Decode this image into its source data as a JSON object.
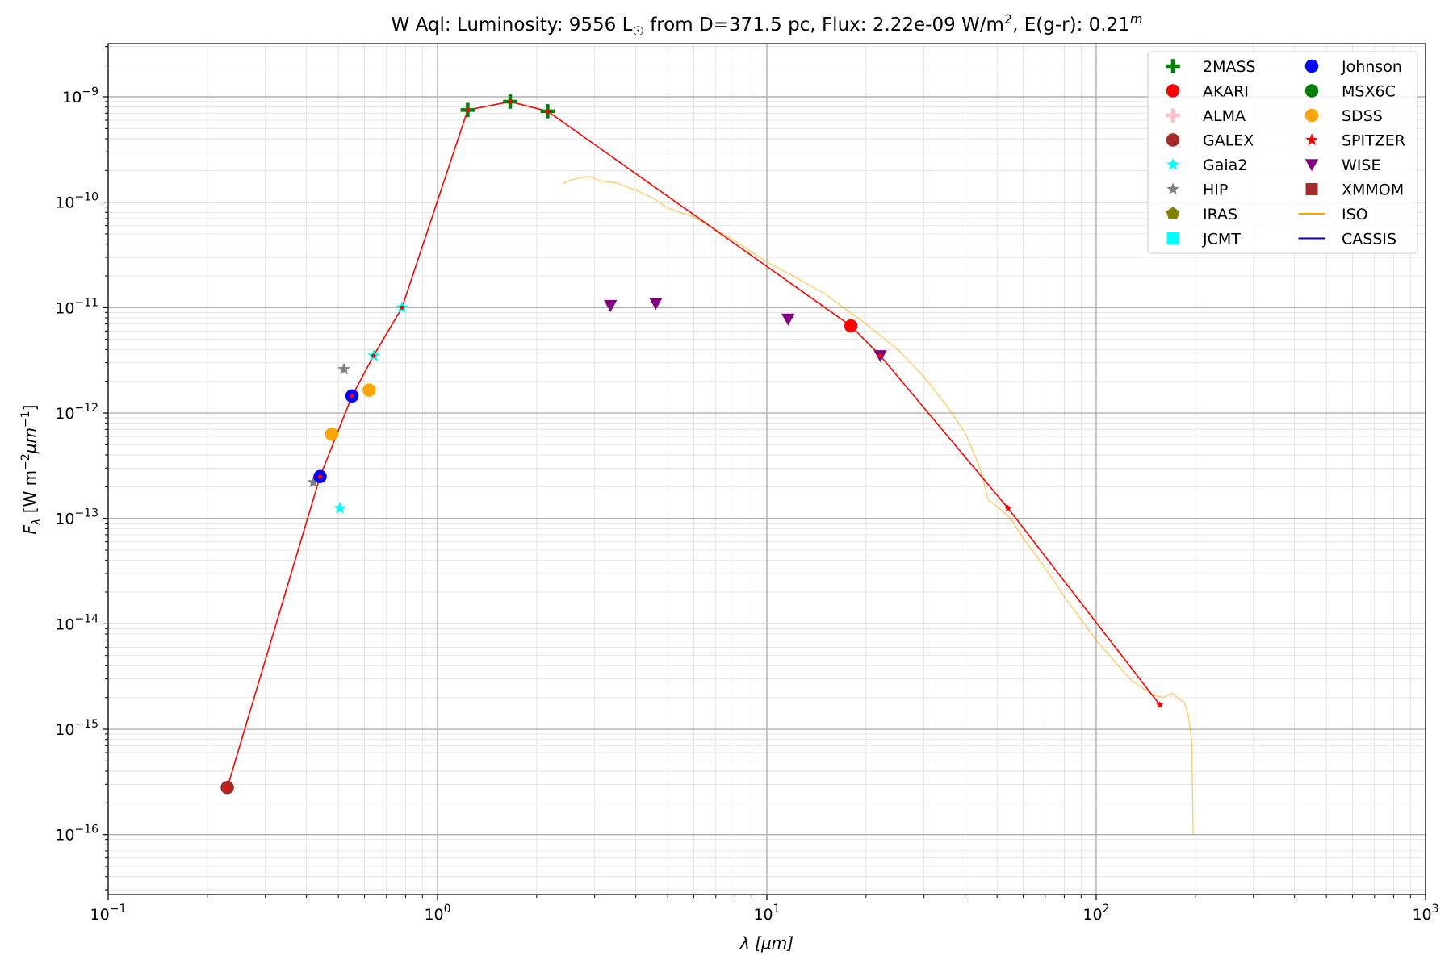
{
  "chart_data": {
    "type": "scatter",
    "title": {
      "prefix": "W Aql:  Luminosity: 9556 L",
      "sun_symbol": "☉",
      "mid": " from D=371.5 pc, Flux: 2.22e-09 W/m",
      "sup1": "2",
      "tail": ", E(g-r): 0.21",
      "sup2": "m"
    },
    "xlabel": {
      "main": "λ [",
      "mu": "μm",
      "end": "]"
    },
    "ylabel": {
      "main": "F",
      "sub": "λ",
      "unit": " [W m",
      "e1": "−2",
      "mu": "μm",
      "e2": "−1",
      "end": "]"
    },
    "x_scale": "log",
    "y_scale": "log",
    "xlim": [
      0.1,
      1000
    ],
    "ylim": [
      2.7e-17,
      3.2e-09
    ],
    "x_ticks": [
      {
        "v": 0.1,
        "base": "10",
        "exp": "−1"
      },
      {
        "v": 1,
        "base": "10",
        "exp": "0"
      },
      {
        "v": 10,
        "base": "10",
        "exp": "1"
      },
      {
        "v": 100,
        "base": "10",
        "exp": "2"
      },
      {
        "v": 1000,
        "base": "10",
        "exp": "3"
      }
    ],
    "y_ticks": [
      {
        "v": 1e-16,
        "base": "10",
        "exp": "−16"
      },
      {
        "v": 1e-15,
        "base": "10",
        "exp": "−15"
      },
      {
        "v": 1e-14,
        "base": "10",
        "exp": "−14"
      },
      {
        "v": 1e-13,
        "base": "10",
        "exp": "−13"
      },
      {
        "v": 1e-12,
        "base": "10",
        "exp": "−12"
      },
      {
        "v": 1e-11,
        "base": "10",
        "exp": "−11"
      },
      {
        "v": 1e-10,
        "base": "10",
        "exp": "−10"
      },
      {
        "v": 1e-09,
        "base": "10",
        "exp": "−9"
      }
    ],
    "grid": true,
    "legend_position": "top-right",
    "legend": [
      {
        "name": "2MASS",
        "marker": "plus",
        "color": "#008000"
      },
      {
        "name": "AKARI",
        "marker": "circle",
        "color": "#ff0000"
      },
      {
        "name": "ALMA",
        "marker": "plus",
        "color": "#ffc0cb"
      },
      {
        "name": "GALEX",
        "marker": "circle",
        "color": "#a52a2a"
      },
      {
        "name": "Gaia2",
        "marker": "star",
        "color": "#00ffff"
      },
      {
        "name": "HIP",
        "marker": "star",
        "color": "#808080"
      },
      {
        "name": "IRAS",
        "marker": "pentagon",
        "color": "#808000"
      },
      {
        "name": "JCMT",
        "marker": "square",
        "color": "#00ffff"
      },
      {
        "name": "Johnson",
        "marker": "circle",
        "color": "#0000ff"
      },
      {
        "name": "MSX6C",
        "marker": "circle",
        "color": "#008000"
      },
      {
        "name": "SDSS",
        "marker": "circle",
        "color": "#ffa500"
      },
      {
        "name": "SPITZER",
        "marker": "star",
        "color": "#ff0000"
      },
      {
        "name": "WISE",
        "marker": "triangle-down",
        "color": "#800080"
      },
      {
        "name": "XMMOM",
        "marker": "square",
        "color": "#a52a2a"
      },
      {
        "name": "ISO",
        "marker": "line",
        "color": "#ffa500"
      },
      {
        "name": "CASSIS",
        "marker": "line",
        "color": "#0000cd"
      }
    ],
    "points": [
      {
        "series": "GALEX",
        "marker": "circle",
        "color": "#a52a2a",
        "x": 0.23,
        "y": 2.8e-16
      },
      {
        "series": "HIP",
        "marker": "star",
        "color": "#808080",
        "x": 0.42,
        "y": 2.2e-13
      },
      {
        "series": "Johnson",
        "marker": "circle",
        "color": "#0000ff",
        "x": 0.44,
        "y": 2.5e-13
      },
      {
        "series": "SDSS",
        "marker": "circle",
        "color": "#ffa500",
        "x": 0.477,
        "y": 6.3e-13
      },
      {
        "series": "Gaia2",
        "marker": "star",
        "color": "#00ffff",
        "x": 0.505,
        "y": 1.25e-13
      },
      {
        "series": "HIP",
        "marker": "star",
        "color": "#808080",
        "x": 0.52,
        "y": 2.6e-12
      },
      {
        "series": "Johnson",
        "marker": "circle",
        "color": "#0000ff",
        "x": 0.55,
        "y": 1.45e-12
      },
      {
        "series": "SDSS",
        "marker": "circle",
        "color": "#ffa500",
        "x": 0.62,
        "y": 1.65e-12
      },
      {
        "series": "Gaia2",
        "marker": "star",
        "color": "#00ffff",
        "x": 0.64,
        "y": 3.5e-12
      },
      {
        "series": "Gaia2",
        "marker": "star",
        "color": "#00ffff",
        "x": 0.78,
        "y": 1e-11
      },
      {
        "series": "2MASS",
        "marker": "plus",
        "color": "#008000",
        "x": 1.235,
        "y": 7.5e-10
      },
      {
        "series": "2MASS",
        "marker": "plus",
        "color": "#008000",
        "x": 1.662,
        "y": 9e-10
      },
      {
        "series": "2MASS",
        "marker": "plus",
        "color": "#008000",
        "x": 2.159,
        "y": 7.3e-10
      },
      {
        "series": "WISE",
        "marker": "triangle-down",
        "color": "#800080",
        "x": 3.35,
        "y": 1.05e-11
      },
      {
        "series": "WISE",
        "marker": "triangle-down",
        "color": "#800080",
        "x": 4.6,
        "y": 1.1e-11
      },
      {
        "series": "WISE",
        "marker": "triangle-down",
        "color": "#800080",
        "x": 11.6,
        "y": 7.8e-12
      },
      {
        "series": "AKARI",
        "marker": "circle",
        "color": "#ff0000",
        "x": 18,
        "y": 6.7e-12
      },
      {
        "series": "WISE",
        "marker": "triangle-down",
        "color": "#800080",
        "x": 22.1,
        "y": 3.5e-12
      },
      {
        "series": "SPITZER",
        "marker": "star",
        "color": "#ff0000",
        "x": 54,
        "y": 1.25e-13
      },
      {
        "series": "SPITZER",
        "marker": "star",
        "color": "#ff0000",
        "x": 156,
        "y": 1.7e-15
      }
    ],
    "sed_line": {
      "color": "#ff0000",
      "x": [
        0.23,
        0.44,
        0.55,
        0.64,
        0.78,
        1.235,
        1.662,
        2.159,
        18,
        22.1,
        54,
        156
      ],
      "y": [
        2.8e-16,
        2.5e-13,
        1.45e-12,
        3.5e-12,
        1e-11,
        7.5e-10,
        9e-10,
        7.3e-10,
        6.7e-12,
        3.5e-12,
        1.25e-13,
        1.7e-15
      ]
    },
    "iso_spectrum": {
      "color": "#ffa500",
      "x": [
        2.4,
        2.5,
        2.7,
        2.9,
        3.1,
        3.5,
        4.0,
        4.5,
        5.0,
        6.0,
        7.0,
        8.0,
        10,
        12,
        15,
        20,
        25,
        30,
        35,
        40,
        44,
        45,
        47,
        50,
        55,
        60,
        70,
        80,
        90,
        100,
        110,
        120,
        130,
        140,
        150,
        160,
        170,
        180,
        185,
        190,
        195,
        197
      ],
      "y": [
        1.5e-10,
        1.6e-10,
        1.7e-10,
        1.75e-10,
        1.6e-10,
        1.52e-10,
        1.3e-10,
        1.1e-10,
        8.8e-11,
        7.2e-11,
        5.5e-11,
        4.3e-11,
        2.7e-11,
        2e-11,
        1.35e-11,
        7e-12,
        4e-12,
        2.2e-12,
        1.2e-12,
        6.5e-13,
        3.2e-13,
        2.6e-13,
        1.5e-13,
        1.3e-13,
        1e-13,
        6.5e-14,
        3.4e-14,
        1.8e-14,
        1.1e-14,
        7e-15,
        5e-15,
        3.6e-15,
        2.8e-15,
        2.4e-15,
        2.1e-15,
        2e-15,
        2.2e-15,
        1.9e-15,
        1.8e-15,
        1.4e-15,
        8e-16,
        1e-16
      ]
    }
  }
}
